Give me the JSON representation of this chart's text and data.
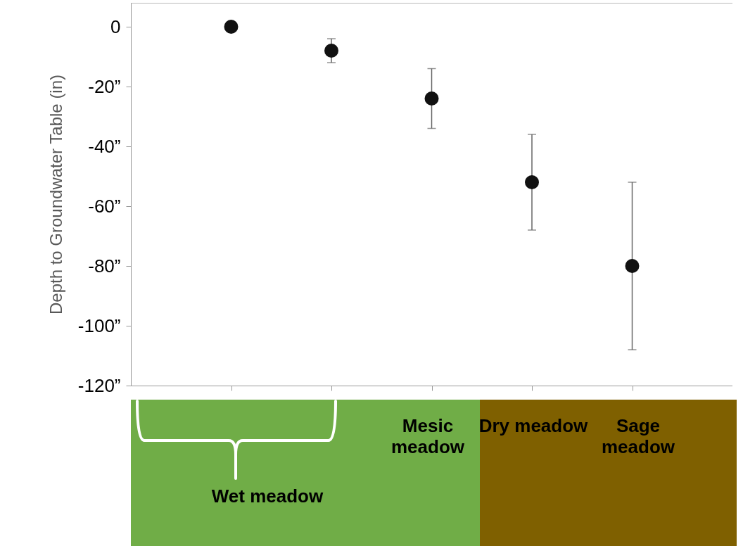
{
  "chart_data": {
    "type": "scatter",
    "ylabel": "Depth to Groundwater Table   (in)",
    "categories": [
      null,
      null,
      null,
      null,
      null
    ],
    "values": [
      0,
      -8,
      -24,
      -52,
      -80
    ],
    "errors": [
      null,
      4,
      10,
      16,
      28
    ],
    "color": "#111111",
    "marker": "circle",
    "ylim": [
      -120,
      8
    ],
    "yticks": [
      0,
      {
        "value": -20,
        "label": "-20”"
      },
      {
        "value": -40,
        "label": "-40”"
      },
      {
        "value": -60,
        "label": "-60”"
      },
      {
        "value": -80,
        "label": "-80”"
      },
      {
        "value": -100,
        "label": "-100”"
      },
      {
        "value": -120,
        "label": "-120”"
      }
    ],
    "tick_labels": "y",
    "grid": false,
    "annotations": [
      "Wet meadow",
      "Mesic meadow",
      "Dry meadow",
      "Sage meadow"
    ]
  }
}
